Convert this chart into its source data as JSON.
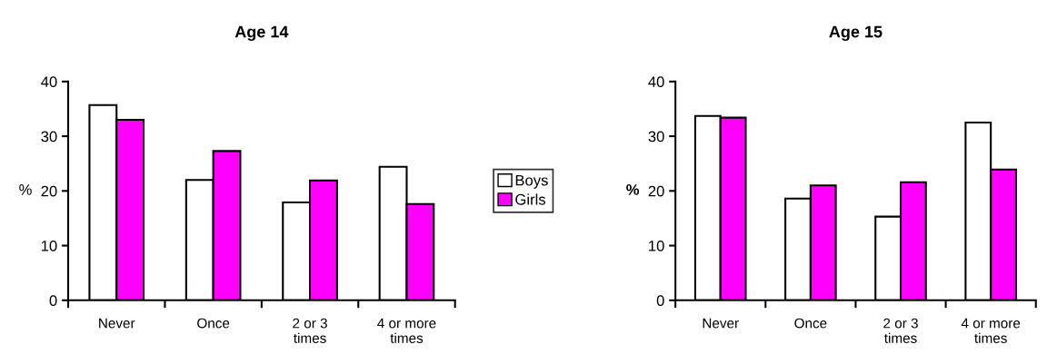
{
  "chart_data": [
    {
      "type": "bar",
      "title": "Age 14",
      "ylabel": "%",
      "categories": [
        "Never",
        "Once",
        "2 or 3\ntimes",
        "4 or more\ntimes"
      ],
      "ylim": [
        0,
        40
      ],
      "yticks": [
        0,
        10,
        20,
        30,
        40
      ],
      "grid": false,
      "legend": "right",
      "series": [
        {
          "name": "Boys",
          "color": "#ffffff",
          "values": [
            35.7,
            22.0,
            17.9,
            24.4
          ]
        },
        {
          "name": "Girls",
          "color": "#ff00ff",
          "values": [
            33.0,
            27.3,
            21.9,
            17.6
          ]
        }
      ]
    },
    {
      "type": "bar",
      "title": "Age 15",
      "ylabel": "%",
      "categories": [
        "Never",
        "Once",
        "2 or 3\ntimes",
        "4 or more\ntimes"
      ],
      "ylim": [
        0,
        40
      ],
      "yticks": [
        0,
        10,
        20,
        30,
        40
      ],
      "grid": false,
      "series": [
        {
          "color": "#ffffff",
          "values": [
            33.7,
            18.6,
            15.3,
            32.5
          ]
        },
        {
          "color": "#ff00ff",
          "values": [
            33.4,
            21.0,
            21.6,
            23.9
          ]
        }
      ]
    }
  ]
}
